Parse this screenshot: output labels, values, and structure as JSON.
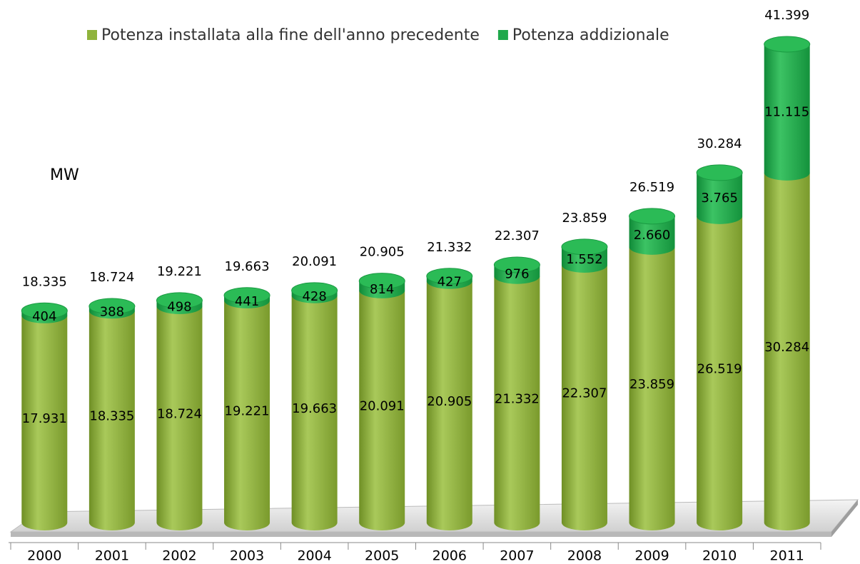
{
  "chart_data": {
    "type": "stacked-cylinder",
    "y_label": "MW",
    "categories": [
      "2000",
      "2001",
      "2002",
      "2003",
      "2004",
      "2005",
      "2006",
      "2007",
      "2008",
      "2009",
      "2010",
      "2011"
    ],
    "series": [
      {
        "name": "Potenza installata alla fine dell'anno precedente",
        "color": "#8fb33c",
        "values": [
          17931,
          18335,
          18724,
          19221,
          19663,
          20091,
          20905,
          21332,
          22307,
          23859,
          26519,
          30284
        ],
        "value_labels": [
          "17.931",
          "18.335",
          "18.724",
          "19.221",
          "19.663",
          "20.091",
          "20.905",
          "21.332",
          "22.307",
          "23.859",
          "26.519",
          "30.284"
        ]
      },
      {
        "name": "Potenza addizionale",
        "color": "#1fa84b",
        "values": [
          404,
          388,
          498,
          441,
          428,
          814,
          427,
          976,
          1552,
          2660,
          3765,
          11115
        ],
        "value_labels": [
          "404",
          "388",
          "498",
          "441",
          "428",
          "814",
          "427",
          "976",
          "1.552",
          "2.660",
          "3.765",
          "11.115"
        ]
      }
    ],
    "totals": {
      "values": [
        18335,
        18724,
        19221,
        19663,
        20091,
        20905,
        21332,
        22307,
        23859,
        26519,
        30284,
        41399
      ],
      "value_labels": [
        "18.335",
        "18.724",
        "19.221",
        "19.663",
        "20.091",
        "20.905",
        "21.332",
        "22.307",
        "23.859",
        "26.519",
        "30.284",
        "41.399"
      ]
    }
  }
}
